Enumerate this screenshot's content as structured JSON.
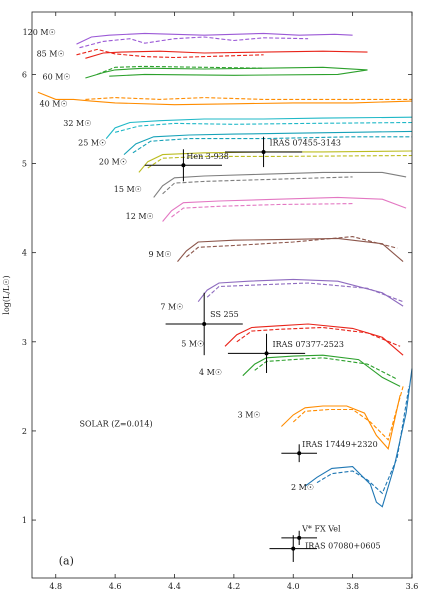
{
  "chart_data": {
    "type": "line",
    "ylabel": "log(L/L☉)",
    "xlabel": "",
    "xlim": [
      4.88,
      3.6
    ],
    "ylim": [
      0.35,
      6.7
    ],
    "x_ticks": [
      "4.8",
      "4.6",
      "4.4",
      "4.2",
      "4.0",
      "3.8",
      "3.6"
    ],
    "y_ticks": [
      "1",
      "2",
      "3",
      "4",
      "5",
      "6"
    ],
    "panel_label": "(a)",
    "metallicity_label": "SOLAR (Z=0.014)",
    "tracks": [
      {
        "mass_label": "120 M☉",
        "color": "#9b59d6",
        "label_at": [
          4.8,
          6.44
        ],
        "solid": [
          [
            4.73,
            6.34
          ],
          [
            4.68,
            6.42
          ],
          [
            4.62,
            6.44
          ],
          [
            4.5,
            6.46
          ],
          [
            4.3,
            6.44
          ],
          [
            4.1,
            6.46
          ],
          [
            3.98,
            6.44
          ],
          [
            3.86,
            6.45
          ],
          [
            3.8,
            6.44
          ]
        ],
        "dashed": [
          [
            4.72,
            6.3
          ],
          [
            4.64,
            6.37
          ],
          [
            4.55,
            6.4
          ],
          [
            4.5,
            6.35
          ],
          [
            4.4,
            6.4
          ],
          [
            4.3,
            6.42
          ],
          [
            4.2,
            6.38
          ],
          [
            4.1,
            6.41
          ],
          [
            3.95,
            6.4
          ]
        ]
      },
      {
        "mass_label": "85 M☉",
        "color": "#e8241a",
        "label_at": [
          4.77,
          6.2
        ],
        "solid": [
          [
            4.7,
            6.18
          ],
          [
            4.64,
            6.24
          ],
          [
            4.58,
            6.25
          ],
          [
            4.45,
            6.26
          ],
          [
            4.3,
            6.24
          ],
          [
            4.1,
            6.25
          ],
          [
            3.9,
            6.26
          ],
          [
            3.75,
            6.25
          ]
        ],
        "dashed": [
          [
            4.73,
            6.22
          ],
          [
            4.66,
            6.28
          ],
          [
            4.6,
            6.23
          ],
          [
            4.5,
            6.2
          ],
          [
            4.4,
            6.19
          ],
          [
            4.3,
            6.2
          ],
          [
            4.1,
            6.22
          ]
        ]
      },
      {
        "mass_label": "60 M☉",
        "color": "#2ca02c",
        "label_at": [
          4.75,
          5.94
        ],
        "solid": [
          [
            4.7,
            5.96
          ],
          [
            4.64,
            6.02
          ],
          [
            4.6,
            6.05
          ],
          [
            4.5,
            6.07
          ],
          [
            4.3,
            6.06
          ],
          [
            4.1,
            6.07
          ],
          [
            3.9,
            6.08
          ],
          [
            3.75,
            6.05
          ],
          [
            3.85,
            6.0
          ],
          [
            4.2,
            5.99
          ],
          [
            4.5,
            6.0
          ],
          [
            4.62,
            5.98
          ]
        ],
        "dashed": [
          [
            4.66,
            6.0
          ],
          [
            4.6,
            6.08
          ],
          [
            4.5,
            6.09
          ],
          [
            4.3,
            6.08
          ],
          [
            4.1,
            6.07
          ]
        ]
      },
      {
        "mass_label": "40 M☉",
        "color": "#ff8c00",
        "label_at": [
          4.76,
          5.64
        ],
        "solid": [
          [
            4.86,
            5.8
          ],
          [
            4.8,
            5.72
          ],
          [
            4.74,
            5.72
          ],
          [
            4.68,
            5.7
          ],
          [
            4.6,
            5.68
          ],
          [
            4.4,
            5.66
          ],
          [
            4.2,
            5.67
          ],
          [
            4.0,
            5.68
          ],
          [
            3.8,
            5.68
          ],
          [
            3.6,
            5.7
          ]
        ],
        "dashed": [
          [
            4.7,
            5.72
          ],
          [
            4.6,
            5.74
          ],
          [
            4.45,
            5.72
          ],
          [
            4.3,
            5.74
          ],
          [
            4.1,
            5.72
          ],
          [
            3.9,
            5.72
          ],
          [
            3.6,
            5.72
          ]
        ]
      },
      {
        "mass_label": "32 M☉",
        "color": "#1fb8c7",
        "label_at": [
          4.68,
          5.42
        ],
        "solid": [
          [
            4.63,
            5.28
          ],
          [
            4.6,
            5.4
          ],
          [
            4.55,
            5.46
          ],
          [
            4.45,
            5.48
          ],
          [
            4.3,
            5.5
          ],
          [
            4.1,
            5.5
          ],
          [
            3.9,
            5.51
          ],
          [
            3.6,
            5.52
          ]
        ],
        "dashed": [
          [
            4.6,
            5.35
          ],
          [
            4.52,
            5.42
          ],
          [
            4.4,
            5.45
          ],
          [
            4.2,
            5.44
          ],
          [
            3.95,
            5.45
          ],
          [
            3.6,
            5.46
          ]
        ]
      },
      {
        "mass_label": "25 M☉",
        "color": "#17a2b8",
        "label_at": [
          4.63,
          5.2
        ],
        "solid": [
          [
            4.57,
            5.1
          ],
          [
            4.53,
            5.22
          ],
          [
            4.47,
            5.3
          ],
          [
            4.35,
            5.32
          ],
          [
            4.2,
            5.33
          ],
          [
            4.0,
            5.34
          ],
          [
            3.8,
            5.35
          ],
          [
            3.6,
            5.36
          ]
        ],
        "dashed": [
          [
            4.54,
            5.12
          ],
          [
            4.48,
            5.25
          ],
          [
            4.35,
            5.28
          ],
          [
            4.1,
            5.28
          ],
          [
            3.8,
            5.3
          ],
          [
            3.6,
            5.3
          ]
        ]
      },
      {
        "mass_label": "20 M☉",
        "color": "#bcbd22",
        "label_at": [
          4.56,
          4.99
        ],
        "solid": [
          [
            4.52,
            4.9
          ],
          [
            4.49,
            5.02
          ],
          [
            4.44,
            5.1
          ],
          [
            4.3,
            5.12
          ],
          [
            4.1,
            5.13
          ],
          [
            3.9,
            5.13
          ],
          [
            3.6,
            5.14
          ]
        ],
        "dashed": [
          [
            4.49,
            4.95
          ],
          [
            4.44,
            5.06
          ],
          [
            4.3,
            5.08
          ],
          [
            4.05,
            5.08
          ],
          [
            3.6,
            5.09
          ]
        ]
      },
      {
        "mass_label": "15 M☉",
        "color": "#7f7f7f",
        "label_at": [
          4.51,
          4.68
        ],
        "solid": [
          [
            4.47,
            4.62
          ],
          [
            4.44,
            4.75
          ],
          [
            4.4,
            4.84
          ],
          [
            4.3,
            4.86
          ],
          [
            4.1,
            4.88
          ],
          [
            3.9,
            4.9
          ],
          [
            3.7,
            4.9
          ],
          [
            3.62,
            4.85
          ]
        ],
        "dashed": [
          [
            4.44,
            4.66
          ],
          [
            4.4,
            4.78
          ],
          [
            4.3,
            4.8
          ],
          [
            4.1,
            4.82
          ],
          [
            3.8,
            4.85
          ]
        ]
      },
      {
        "mass_label": "12 M☉",
        "color": "#e377c2",
        "label_at": [
          4.47,
          4.38
        ],
        "solid": [
          [
            4.44,
            4.35
          ],
          [
            4.41,
            4.47
          ],
          [
            4.37,
            4.56
          ],
          [
            4.25,
            4.58
          ],
          [
            4.05,
            4.6
          ],
          [
            3.85,
            4.62
          ],
          [
            3.7,
            4.6
          ],
          [
            3.62,
            4.5
          ]
        ],
        "dashed": [
          [
            4.41,
            4.4
          ],
          [
            4.37,
            4.5
          ],
          [
            4.25,
            4.52
          ],
          [
            4.05,
            4.54
          ],
          [
            3.8,
            4.55
          ]
        ]
      },
      {
        "mass_label": "9 M☉",
        "color": "#8c564b",
        "label_at": [
          4.41,
          3.95
        ],
        "solid": [
          [
            4.39,
            3.9
          ],
          [
            4.36,
            4.02
          ],
          [
            4.32,
            4.12
          ],
          [
            4.2,
            4.14
          ],
          [
            4.0,
            4.15
          ],
          [
            3.85,
            4.16
          ],
          [
            3.7,
            4.1
          ],
          [
            3.63,
            3.9
          ]
        ],
        "dashed": [
          [
            4.36,
            3.95
          ],
          [
            4.32,
            4.06
          ],
          [
            4.2,
            4.08
          ],
          [
            4.0,
            4.12
          ],
          [
            3.8,
            4.18
          ],
          [
            3.65,
            4.05
          ]
        ]
      },
      {
        "mass_label": "7 M☉",
        "color": "#8e6bbf",
        "label_at": [
          4.37,
          3.36
        ],
        "solid": [
          [
            4.32,
            3.45
          ],
          [
            4.29,
            3.58
          ],
          [
            4.25,
            3.66
          ],
          [
            4.15,
            3.68
          ],
          [
            4.0,
            3.7
          ],
          [
            3.85,
            3.68
          ],
          [
            3.7,
            3.55
          ],
          [
            3.63,
            3.4
          ]
        ],
        "dashed": [
          [
            4.29,
            3.5
          ],
          [
            4.25,
            3.62
          ],
          [
            4.1,
            3.64
          ],
          [
            3.95,
            3.66
          ],
          [
            3.75,
            3.6
          ],
          [
            3.63,
            3.45
          ]
        ]
      },
      {
        "mass_label": "5 M☉",
        "color": "#e8241a",
        "label_at": [
          4.3,
          2.95
        ],
        "solid": [
          [
            4.23,
            2.95
          ],
          [
            4.19,
            3.08
          ],
          [
            4.14,
            3.16
          ],
          [
            4.05,
            3.18
          ],
          [
            3.95,
            3.2
          ],
          [
            3.8,
            3.15
          ],
          [
            3.7,
            3.05
          ],
          [
            3.63,
            2.85
          ]
        ],
        "dashed": [
          [
            4.19,
            3.0
          ],
          [
            4.14,
            3.12
          ],
          [
            4.05,
            3.14
          ],
          [
            3.9,
            3.16
          ],
          [
            3.75,
            3.1
          ],
          [
            3.64,
            2.95
          ]
        ]
      },
      {
        "mass_label": "4 M☉",
        "color": "#2ca02c",
        "label_at": [
          4.24,
          2.63
        ],
        "solid": [
          [
            4.17,
            2.62
          ],
          [
            4.13,
            2.75
          ],
          [
            4.09,
            2.82
          ],
          [
            4.0,
            2.84
          ],
          [
            3.9,
            2.85
          ],
          [
            3.78,
            2.8
          ],
          [
            3.7,
            2.6
          ],
          [
            3.64,
            2.5
          ]
        ],
        "dashed": [
          [
            4.13,
            2.68
          ],
          [
            4.09,
            2.78
          ],
          [
            4.0,
            2.8
          ],
          [
            3.9,
            2.82
          ],
          [
            3.75,
            2.75
          ],
          [
            3.65,
            2.58
          ]
        ]
      },
      {
        "mass_label": "3 M☉",
        "color": "#ff8c00",
        "label_at": [
          4.11,
          2.15
        ],
        "solid": [
          [
            4.04,
            2.05
          ],
          [
            4.0,
            2.18
          ],
          [
            3.96,
            2.26
          ],
          [
            3.9,
            2.28
          ],
          [
            3.82,
            2.28
          ],
          [
            3.76,
            2.2
          ],
          [
            3.72,
            1.95
          ],
          [
            3.68,
            1.8
          ],
          [
            3.64,
            2.4
          ]
        ],
        "dashed": [
          [
            4.0,
            2.1
          ],
          [
            3.96,
            2.22
          ],
          [
            3.88,
            2.24
          ],
          [
            3.8,
            2.24
          ],
          [
            3.74,
            2.1
          ],
          [
            3.68,
            1.9
          ],
          [
            3.63,
            2.5
          ]
        ]
      },
      {
        "mass_label": "2 M☉",
        "color": "#1f77b4",
        "label_at": [
          3.93,
          1.34
        ],
        "solid": [
          [
            3.96,
            1.38
          ],
          [
            3.92,
            1.48
          ],
          [
            3.87,
            1.58
          ],
          [
            3.8,
            1.6
          ],
          [
            3.74,
            1.4
          ],
          [
            3.72,
            1.2
          ],
          [
            3.7,
            1.15
          ],
          [
            3.66,
            1.6
          ],
          [
            3.62,
            2.2
          ],
          [
            3.6,
            2.7
          ]
        ],
        "dashed": [
          [
            3.92,
            1.42
          ],
          [
            3.87,
            1.52
          ],
          [
            3.8,
            1.55
          ],
          [
            3.75,
            1.45
          ],
          [
            3.7,
            1.3
          ],
          [
            3.65,
            1.7
          ],
          [
            3.61,
            2.5
          ]
        ]
      }
    ],
    "stars": [
      {
        "name": "Hen 3-938",
        "x": 4.37,
        "y": 4.98,
        "xerr": 0.13,
        "yerr": 0.18,
        "label_at": [
          4.36,
          5.05
        ]
      },
      {
        "name": "IRAS 07455-3143",
        "x": 4.1,
        "y": 5.13,
        "xerr": 0.13,
        "yerr": 0.17,
        "label_at": [
          4.08,
          5.2
        ]
      },
      {
        "name": "SS 255",
        "x": 4.3,
        "y": 3.2,
        "xerr": 0.13,
        "yerr": 0.35,
        "label_at": [
          4.28,
          3.28
        ]
      },
      {
        "name": "IRAS 07377-2523",
        "x": 4.09,
        "y": 2.87,
        "xerr": 0.13,
        "yerr": 0.22,
        "label_at": [
          4.07,
          2.94
        ]
      },
      {
        "name": "IRAS 17449+2320",
        "x": 3.98,
        "y": 1.75,
        "xerr": 0.06,
        "yerr": 0.1,
        "label_at": [
          3.97,
          1.82
        ]
      },
      {
        "name": "V* FX Vel",
        "x": 3.98,
        "y": 0.8,
        "xerr": 0.06,
        "yerr": 0.08,
        "label_at": [
          3.97,
          0.87
        ]
      },
      {
        "name": "IRAS 07080+0605",
        "x": 4.0,
        "y": 0.68,
        "xerr": 0.08,
        "yerr": 0.15,
        "label_at": [
          3.96,
          0.68
        ]
      }
    ]
  }
}
